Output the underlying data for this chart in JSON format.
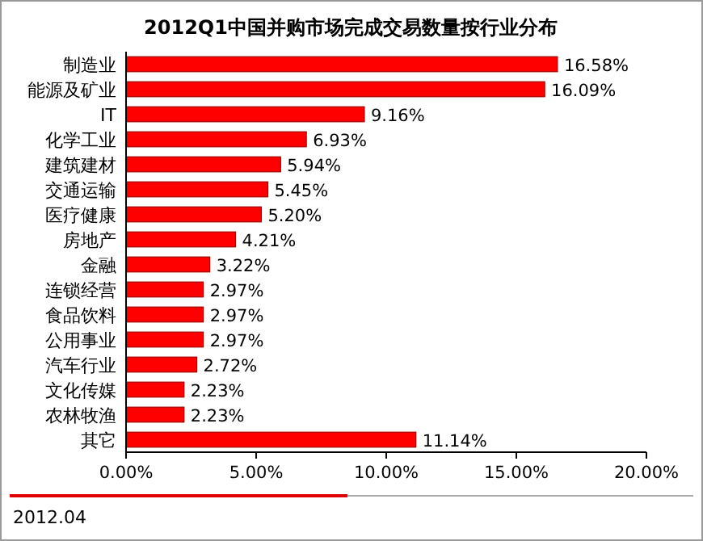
{
  "chart_data": {
    "type": "bar",
    "orientation": "horizontal",
    "title": "2012Q1中国并购市场完成交易数量按行业分布",
    "categories": [
      "制造业",
      "能源及矿业",
      "IT",
      "化学工业",
      "建筑建材",
      "交通运输",
      "医疗健康",
      "房地产",
      "金融",
      "连锁经营",
      "食品饮料",
      "公用事业",
      "汽车行业",
      "文化传媒",
      "农林牧渔",
      "其它"
    ],
    "values": [
      16.58,
      16.09,
      9.16,
      6.93,
      5.94,
      5.45,
      5.2,
      4.21,
      3.22,
      2.97,
      2.97,
      2.97,
      2.72,
      2.23,
      2.23,
      11.14
    ],
    "value_labels": [
      "16.58%",
      "16.09%",
      "9.16%",
      "6.93%",
      "5.94%",
      "5.45%",
      "5.20%",
      "4.21%",
      "3.22%",
      "2.97%",
      "2.97%",
      "2.97%",
      "2.72%",
      "2.23%",
      "2.23%",
      "11.14%"
    ],
    "color": "#ff0000",
    "xlim": [
      0,
      20
    ],
    "xticks": [
      {
        "value": 0,
        "label": "0.00%"
      },
      {
        "value": 5,
        "label": "5.00%"
      },
      {
        "value": 10,
        "label": "10.00%"
      },
      {
        "value": 15,
        "label": "15.00%"
      },
      {
        "value": 20,
        "label": "20.00%"
      }
    ],
    "annotations": [
      "2012.04"
    ]
  }
}
